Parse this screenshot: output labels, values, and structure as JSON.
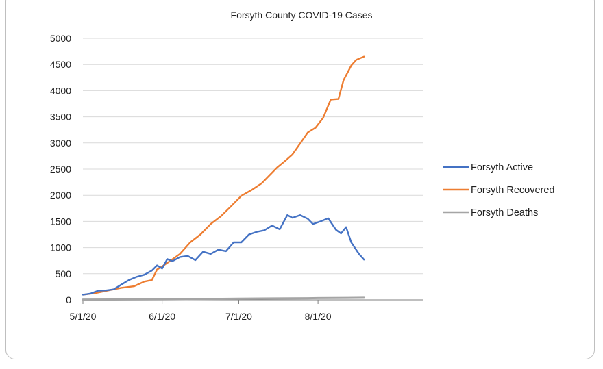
{
  "chart_data": {
    "type": "line",
    "title": "Forsyth County COVID-19 Cases",
    "xlabel": "",
    "ylabel": "",
    "xlim": [
      "2020-05-01",
      "2020-09-11"
    ],
    "ylim": [
      0,
      5000
    ],
    "yticks": [
      0,
      500,
      1000,
      1500,
      2000,
      2500,
      3000,
      3500,
      4000,
      4500,
      5000
    ],
    "xticks": [
      "5/1/20",
      "6/1/20",
      "7/1/20",
      "8/1/20"
    ],
    "xtick_dates": [
      "2020-05-01",
      "2020-06-01",
      "2020-07-01",
      "2020-08-01"
    ],
    "grid": "horizontal",
    "legend_position": "right",
    "series": [
      {
        "name": "Forsyth Active",
        "color": "#4472C4",
        "points": [
          [
            "2020-05-01",
            100
          ],
          [
            "2020-05-04",
            120
          ],
          [
            "2020-05-07",
            175
          ],
          [
            "2020-05-10",
            180
          ],
          [
            "2020-05-13",
            200
          ],
          [
            "2020-05-16",
            290
          ],
          [
            "2020-05-19",
            380
          ],
          [
            "2020-05-22",
            440
          ],
          [
            "2020-05-25",
            480
          ],
          [
            "2020-05-28",
            560
          ],
          [
            "2020-05-30",
            660
          ],
          [
            "2020-06-01",
            600
          ],
          [
            "2020-06-03",
            780
          ],
          [
            "2020-06-05",
            740
          ],
          [
            "2020-06-08",
            820
          ],
          [
            "2020-06-11",
            840
          ],
          [
            "2020-06-14",
            760
          ],
          [
            "2020-06-17",
            920
          ],
          [
            "2020-06-20",
            880
          ],
          [
            "2020-06-23",
            960
          ],
          [
            "2020-06-26",
            930
          ],
          [
            "2020-06-29",
            1100
          ],
          [
            "2020-07-02",
            1100
          ],
          [
            "2020-07-05",
            1250
          ],
          [
            "2020-07-08",
            1300
          ],
          [
            "2020-07-11",
            1330
          ],
          [
            "2020-07-14",
            1420
          ],
          [
            "2020-07-17",
            1350
          ],
          [
            "2020-07-20",
            1620
          ],
          [
            "2020-07-22",
            1570
          ],
          [
            "2020-07-25",
            1620
          ],
          [
            "2020-07-28",
            1550
          ],
          [
            "2020-07-30",
            1450
          ],
          [
            "2020-08-02",
            1500
          ],
          [
            "2020-08-05",
            1560
          ],
          [
            "2020-08-08",
            1340
          ],
          [
            "2020-08-10",
            1270
          ],
          [
            "2020-08-12",
            1390
          ],
          [
            "2020-08-14",
            1100
          ],
          [
            "2020-08-17",
            880
          ],
          [
            "2020-08-19",
            770
          ]
        ]
      },
      {
        "name": "Forsyth Recovered",
        "color": "#ED7D31",
        "points": [
          [
            "2020-05-01",
            100
          ],
          [
            "2020-05-06",
            130
          ],
          [
            "2020-05-11",
            180
          ],
          [
            "2020-05-16",
            230
          ],
          [
            "2020-05-21",
            260
          ],
          [
            "2020-05-25",
            350
          ],
          [
            "2020-05-28",
            380
          ],
          [
            "2020-05-30",
            580
          ],
          [
            "2020-06-01",
            640
          ],
          [
            "2020-06-04",
            740
          ],
          [
            "2020-06-08",
            880
          ],
          [
            "2020-06-12",
            1100
          ],
          [
            "2020-06-16",
            1250
          ],
          [
            "2020-06-20",
            1450
          ],
          [
            "2020-06-24",
            1600
          ],
          [
            "2020-06-28",
            1790
          ],
          [
            "2020-07-02",
            1990
          ],
          [
            "2020-07-06",
            2100
          ],
          [
            "2020-07-10",
            2230
          ],
          [
            "2020-07-13",
            2380
          ],
          [
            "2020-07-16",
            2530
          ],
          [
            "2020-07-19",
            2650
          ],
          [
            "2020-07-22",
            2780
          ],
          [
            "2020-07-25",
            2990
          ],
          [
            "2020-07-28",
            3200
          ],
          [
            "2020-07-31",
            3290
          ],
          [
            "2020-08-03",
            3480
          ],
          [
            "2020-08-06",
            3830
          ],
          [
            "2020-08-09",
            3840
          ],
          [
            "2020-08-11",
            4200
          ],
          [
            "2020-08-14",
            4480
          ],
          [
            "2020-08-16",
            4590
          ],
          [
            "2020-08-19",
            4650
          ]
        ]
      },
      {
        "name": "Forsyth Deaths",
        "color": "#A5A5A5",
        "points": [
          [
            "2020-05-01",
            5
          ],
          [
            "2020-06-01",
            10
          ],
          [
            "2020-06-15",
            15
          ],
          [
            "2020-07-01",
            22
          ],
          [
            "2020-07-15",
            28
          ],
          [
            "2020-07-28",
            32
          ],
          [
            "2020-08-01",
            34
          ],
          [
            "2020-08-19",
            40
          ]
        ]
      }
    ]
  }
}
